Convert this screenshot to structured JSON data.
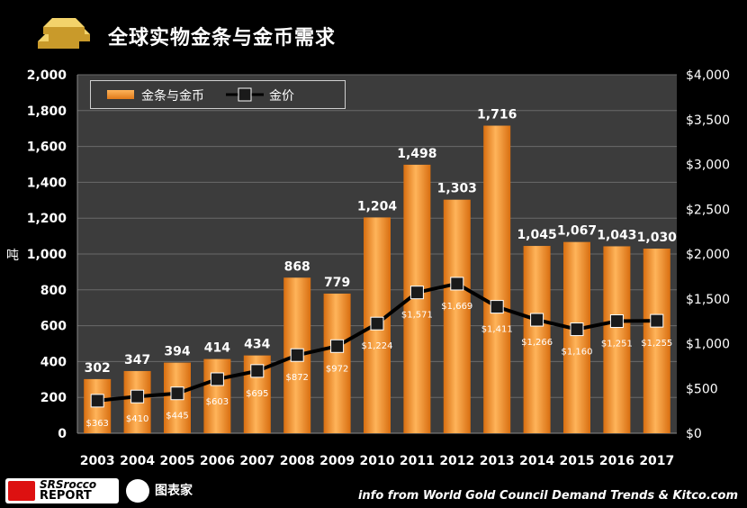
{
  "header": {
    "title": "全球实物金条与金币需求"
  },
  "source": "info from World Gold Council Demand Trends & Kitco.com",
  "logos": {
    "report_line1": "SRSrocco",
    "report_line2": "REPORT",
    "watermark": "图表家"
  },
  "colors": {
    "bar_top": "#ffb45a",
    "bar_bottom": "#d86e10",
    "plot_bg": "#3c3c3c",
    "line": "#000000",
    "marker_fill": "#1a1a1a"
  },
  "chart_data": {
    "type": "bar",
    "title": "全球实物金条与金币需求",
    "ylabel": "吨",
    "categories": [
      "2003",
      "2004",
      "2005",
      "2006",
      "2007",
      "2008",
      "2009",
      "2010",
      "2011",
      "2012",
      "2013",
      "2014",
      "2015",
      "2016",
      "2017"
    ],
    "ylim": [
      0,
      2000
    ],
    "y2lim": [
      0,
      4000
    ],
    "yticks": [
      "0",
      "200",
      "400",
      "600",
      "800",
      "1,000",
      "1,200",
      "1,400",
      "1,600",
      "1,800",
      "2,000"
    ],
    "y2ticks": [
      "$0",
      "$500",
      "$1,000",
      "$1,500",
      "$2,000",
      "$2,500",
      "$3,000",
      "$3,500",
      "$4,000"
    ],
    "legend_position": "top-left",
    "grid": true,
    "series": [
      {
        "name": "金条与金币",
        "type": "bar",
        "values": [
          302,
          347,
          394,
          414,
          434,
          868,
          779,
          1204,
          1498,
          1303,
          1716,
          1045,
          1067,
          1043,
          1030
        ],
        "labels": [
          "302",
          "347",
          "394",
          "414",
          "434",
          "868",
          "779",
          "1,204",
          "1,498",
          "1,303",
          "1,716",
          "1,045",
          "1,067",
          "1,043",
          "1,030"
        ]
      },
      {
        "name": "金价",
        "type": "line",
        "axis": "right",
        "values": [
          363,
          410,
          445,
          603,
          695,
          872,
          972,
          1224,
          1571,
          1669,
          1411,
          1266,
          1160,
          1251,
          1255
        ],
        "labels": [
          "$363",
          "$410",
          "$445",
          "$603",
          "$695",
          "$872",
          "$972",
          "$1,224",
          "$1,571",
          "$1,669",
          "$1,411",
          "$1,266",
          "$1,160",
          "$1,251",
          "$1,255"
        ]
      }
    ]
  }
}
